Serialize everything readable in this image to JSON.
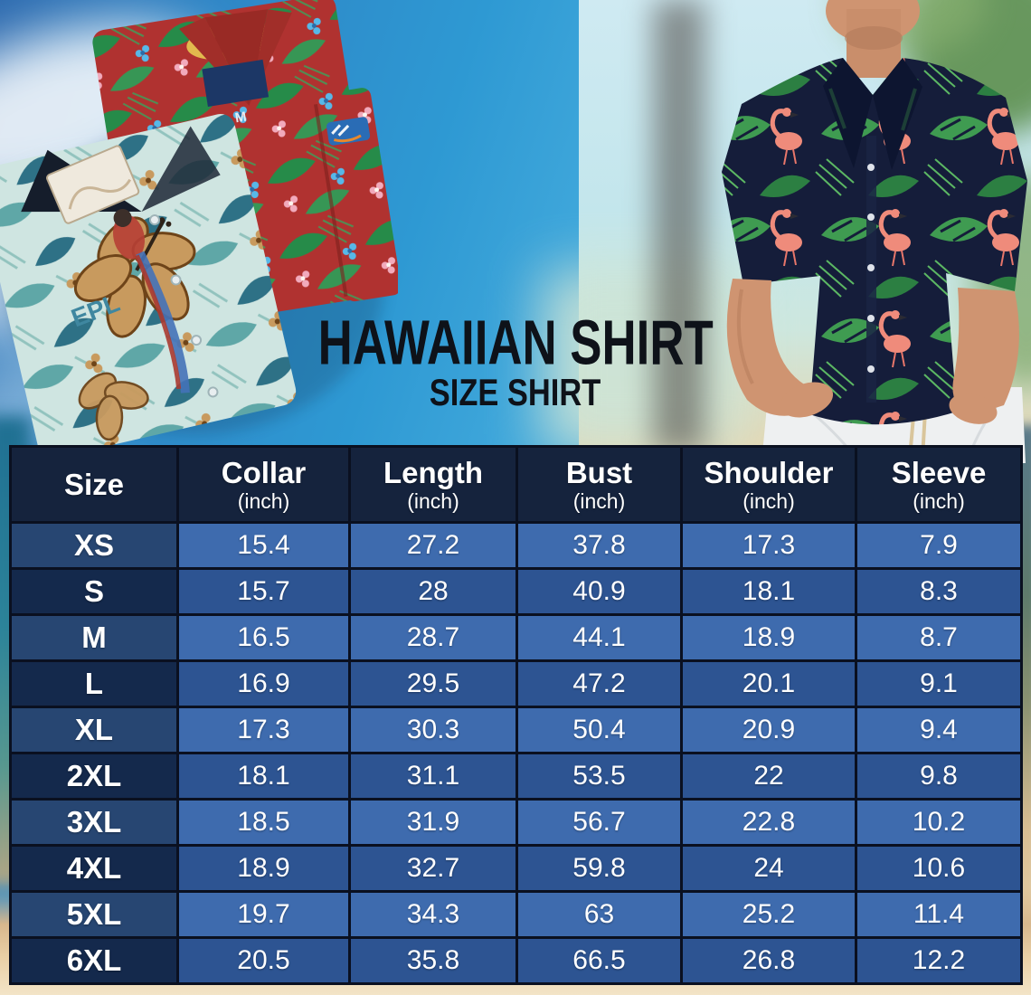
{
  "title": "HAWAIIAN SHIRT",
  "subtitle": "SIZE SHIRT",
  "table": {
    "columns": [
      {
        "label": "Size",
        "unit": ""
      },
      {
        "label": "Collar",
        "unit": "(inch)"
      },
      {
        "label": "Length",
        "unit": "(inch)"
      },
      {
        "label": "Bust",
        "unit": "(inch)"
      },
      {
        "label": "Shoulder",
        "unit": "(inch)"
      },
      {
        "label": "Sleeve",
        "unit": "(inch)"
      }
    ],
    "rows": [
      {
        "size": "XS",
        "values": [
          "15.4",
          "27.2",
          "37.8",
          "17.3",
          "7.9"
        ]
      },
      {
        "size": "S",
        "values": [
          "15.7",
          "28",
          "40.9",
          "18.1",
          "8.3"
        ]
      },
      {
        "size": "M",
        "values": [
          "16.5",
          "28.7",
          "44.1",
          "18.9",
          "8.7"
        ]
      },
      {
        "size": "L",
        "values": [
          "16.9",
          "29.5",
          "47.2",
          "20.1",
          "9.1"
        ]
      },
      {
        "size": "XL",
        "values": [
          "17.3",
          "30.3",
          "50.4",
          "20.9",
          "9.4"
        ]
      },
      {
        "size": "2XL",
        "values": [
          "18.1",
          "31.1",
          "53.5",
          "22",
          "9.8"
        ]
      },
      {
        "size": "3XL",
        "values": [
          "18.5",
          "31.9",
          "56.7",
          "22.8",
          "10.2"
        ]
      },
      {
        "size": "4XL",
        "values": [
          "18.9",
          "32.7",
          "59.8",
          "24",
          "10.6"
        ]
      },
      {
        "size": "5XL",
        "values": [
          "19.7",
          "34.3",
          "63",
          "25.2",
          "11.4"
        ]
      },
      {
        "size": "6XL",
        "values": [
          "20.5",
          "35.8",
          "66.5",
          "26.8",
          "12.2"
        ]
      }
    ]
  },
  "illustrations": {
    "left": {
      "name": "two-folded-hawaiian-shirts",
      "print_text": "EPL",
      "neck_label": "M"
    },
    "right": {
      "name": "man-wearing-flamingo-hawaiian-shirt"
    }
  },
  "colors": {
    "table_header_bg": "#15233d",
    "row_light_label_bg": "#274672",
    "row_light_value_bg": "#3e6bae",
    "row_dark_label_bg": "#14294c",
    "row_dark_value_bg": "#2d5492",
    "grid_line": "#0a1020",
    "table_text": "#ffffff",
    "title_color": "#0e1219",
    "sky_blue": "#2e99d3",
    "sand": "#e9cfa5"
  }
}
